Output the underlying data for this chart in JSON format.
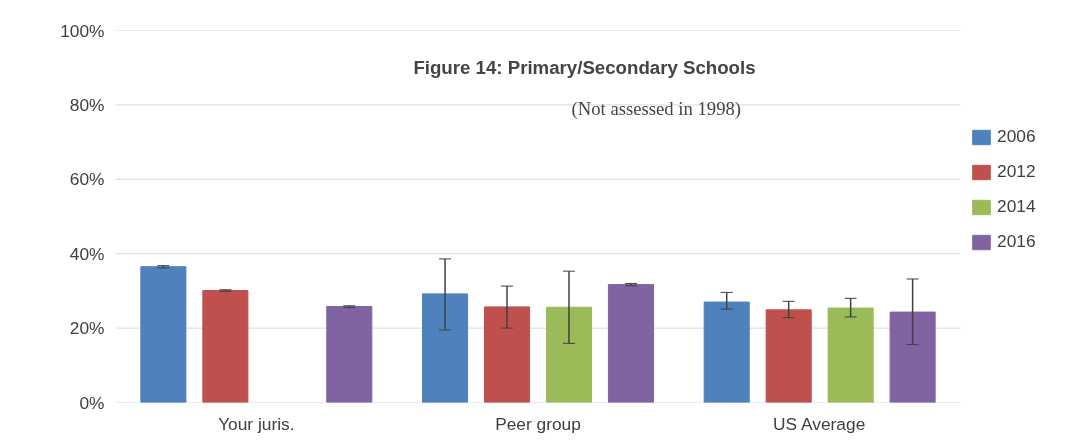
{
  "chart_data": {
    "type": "bar",
    "title": "Figure 14: Primary/Secondary Schools",
    "subtitle": "(Not assessed in 1998)",
    "categories": [
      "Your juris.",
      "Peer group",
      "US Average"
    ],
    "series": [
      {
        "name": "2006",
        "color": "#4f81bd",
        "values": [
          36.5,
          29.2,
          27.0
        ],
        "errors": [
          [
            36.2,
            36.8
          ],
          [
            19.5,
            38.6
          ],
          [
            25.1,
            29.6
          ]
        ]
      },
      {
        "name": "2012",
        "color": "#c0504d",
        "values": [
          30.1,
          25.7,
          24.9
        ],
        "errors": [
          [
            29.9,
            30.3
          ],
          [
            20.0,
            31.3
          ],
          [
            22.8,
            27.2
          ]
        ]
      },
      {
        "name": "2014",
        "color": "#9bbb59",
        "values": [
          null,
          25.6,
          25.4
        ],
        "errors": [
          null,
          [
            15.9,
            35.3
          ],
          [
            23.0,
            28.0
          ]
        ]
      },
      {
        "name": "2016",
        "color": "#8064a2",
        "values": [
          25.8,
          31.7,
          24.3
        ],
        "errors": [
          [
            25.5,
            26.0
          ],
          [
            31.4,
            32.0
          ],
          [
            15.6,
            33.2
          ]
        ]
      }
    ],
    "ylim": [
      0,
      100
    ],
    "yticks": [
      {
        "value": 0,
        "label": "0%"
      },
      {
        "value": 20,
        "label": "20%"
      },
      {
        "value": 40,
        "label": "40%"
      },
      {
        "value": 60,
        "label": "60%"
      },
      {
        "value": 80,
        "label": "80%"
      },
      {
        "value": 100,
        "label": "100%"
      }
    ],
    "grid": "y",
    "legend": "right"
  }
}
